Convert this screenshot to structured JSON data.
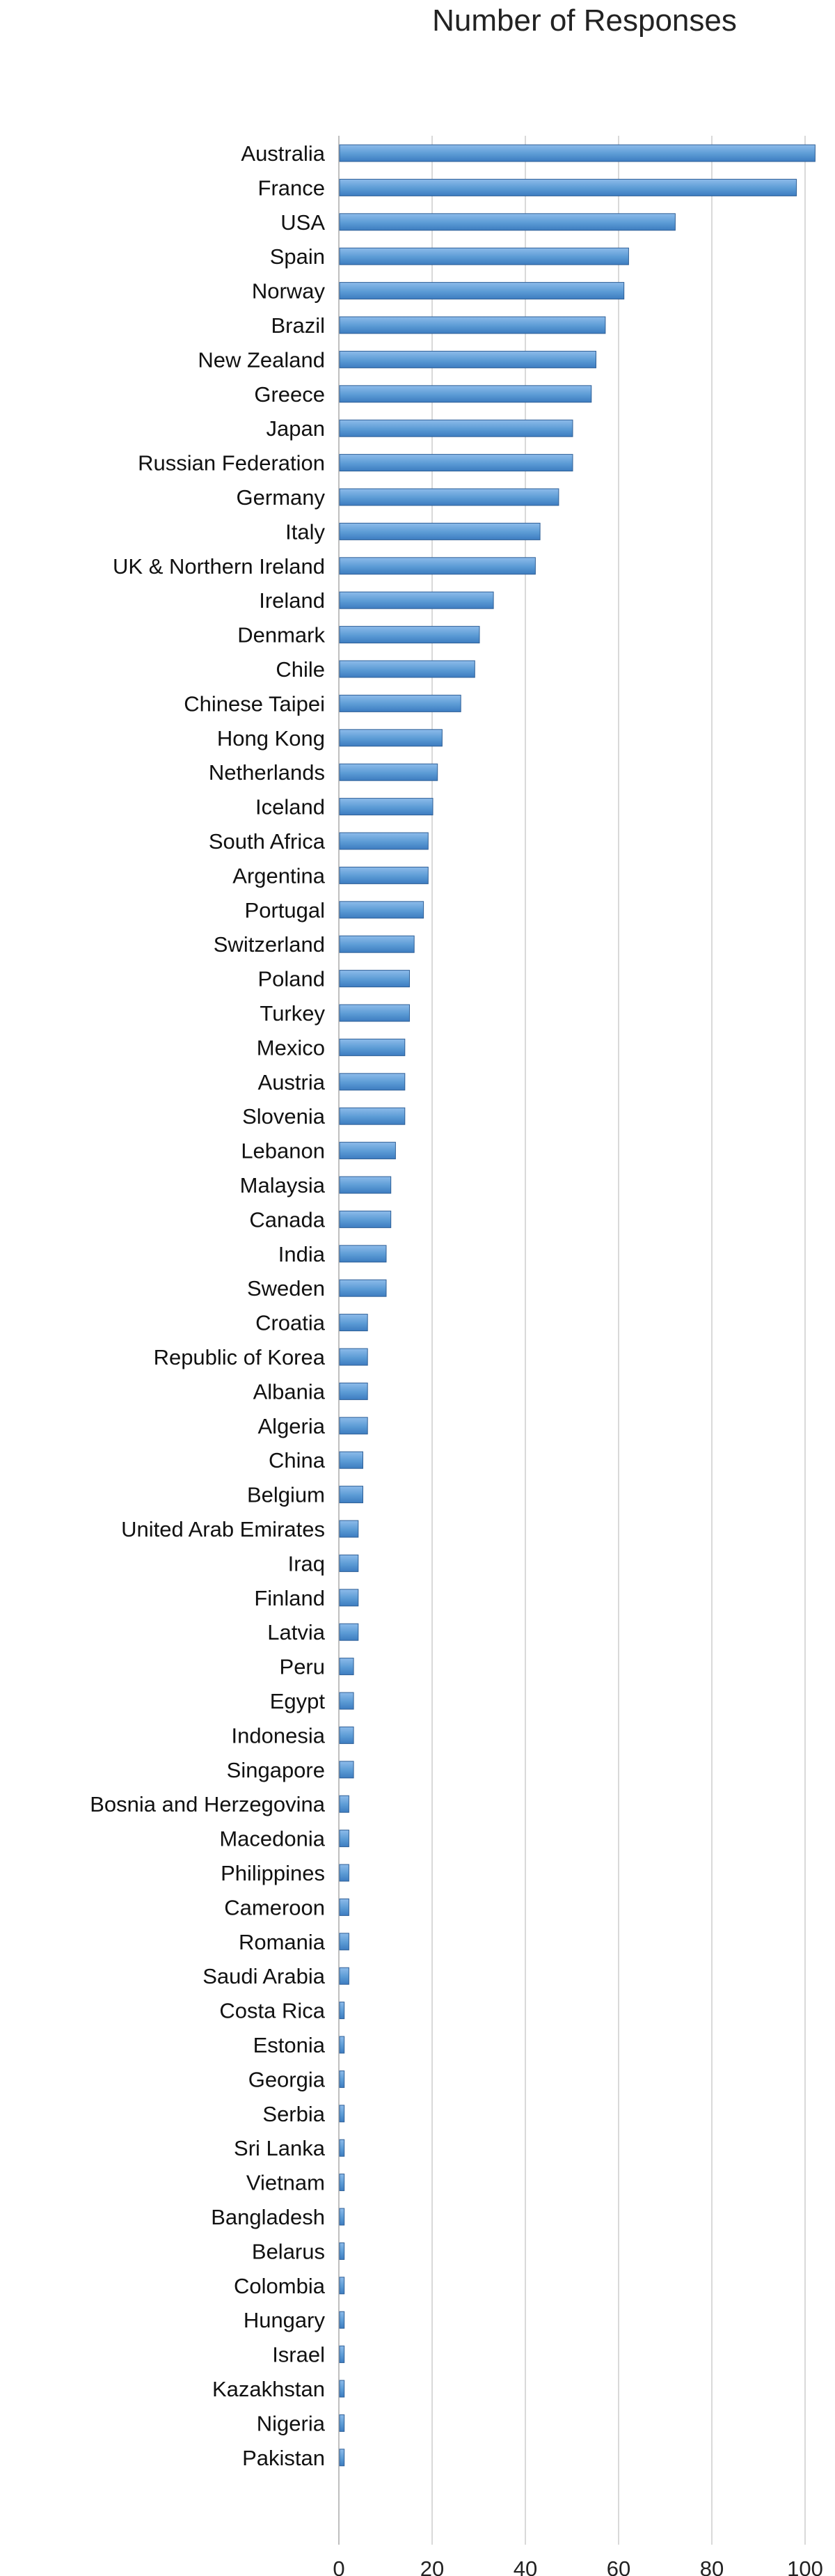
{
  "chart_data": {
    "type": "bar",
    "orientation": "horizontal",
    "title": "Number of Responses",
    "xlim": [
      0,
      100
    ],
    "xticks": [
      0,
      20,
      40,
      60,
      80,
      100
    ],
    "grid": true,
    "bar_color": "#5b9bd5",
    "categories": [
      "Australia",
      "France",
      "USA",
      "Spain",
      "Norway",
      "Brazil",
      "New Zealand",
      "Greece",
      "Japan",
      "Russian Federation",
      "Germany",
      "Italy",
      "UK & Northern Ireland",
      "Ireland",
      "Denmark",
      "Chile",
      "Chinese Taipei",
      "Hong Kong",
      "Netherlands",
      "Iceland",
      "South Africa",
      "Argentina",
      "Portugal",
      "Switzerland",
      "Poland",
      "Turkey",
      "Mexico",
      "Austria",
      "Slovenia",
      "Lebanon",
      "Malaysia",
      "Canada",
      "India",
      "Sweden",
      "Croatia",
      "Republic of Korea",
      "Albania",
      "Algeria",
      "China",
      "Belgium",
      "United Arab Emirates",
      "Iraq",
      "Finland",
      "Latvia",
      "Peru",
      "Egypt",
      "Indonesia",
      "Singapore",
      "Bosnia and Herzegovina",
      "Macedonia",
      "Philippines",
      "Cameroon",
      "Romania",
      "Saudi Arabia",
      "Costa Rica",
      "Estonia",
      "Georgia",
      "Serbia",
      "Sri Lanka",
      "Vietnam",
      "Bangladesh",
      "Belarus",
      "Colombia",
      "Hungary",
      "Israel",
      "Kazakhstan",
      "Nigeria",
      "Pakistan"
    ],
    "values": [
      102,
      98,
      72,
      62,
      61,
      57,
      55,
      54,
      50,
      50,
      47,
      43,
      42,
      33,
      30,
      29,
      26,
      22,
      21,
      20,
      19,
      19,
      18,
      16,
      15,
      15,
      14,
      14,
      14,
      12,
      11,
      11,
      10,
      10,
      6,
      6,
      6,
      6,
      5,
      5,
      4,
      4,
      4,
      4,
      3,
      3,
      3,
      3,
      2,
      2,
      2,
      2,
      2,
      2,
      1,
      1,
      1,
      1,
      1,
      1,
      1,
      1,
      1,
      1,
      1,
      1,
      1,
      1
    ]
  }
}
